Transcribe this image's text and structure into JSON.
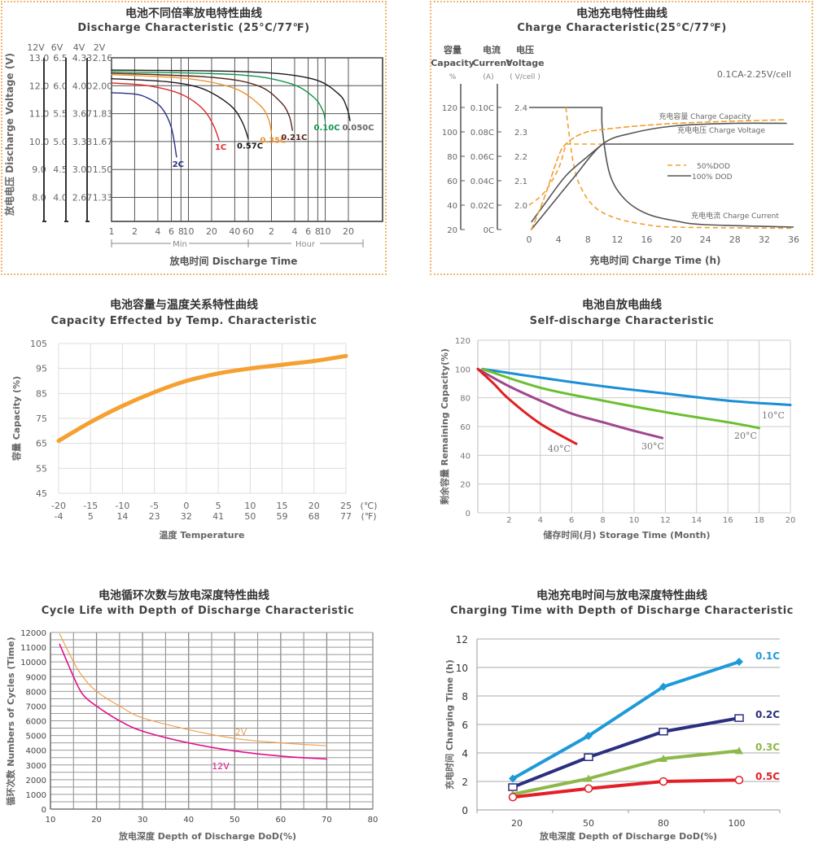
{
  "chart_data": [
    {
      "type": "line",
      "title": "电池不同倍率放电特性曲线",
      "subtitle": "Discharge Characteristic (25°C/77℉)",
      "ylabel": "放电电压  Discharge Voltage (V)",
      "xlabel": "放电时间   Discharge Time",
      "x_scale": "log",
      "y_values_12V": [
        13,
        12,
        11,
        10,
        9,
        8
      ],
      "y_scales": [
        {
          "header": "12V",
          "ticks": [
            "13.0",
            "12.0",
            "11.0",
            "10.0",
            "9.0",
            "8.0"
          ]
        },
        {
          "header": "6V",
          "ticks": [
            "6.5",
            "6.0",
            "5.5",
            "5.0",
            "4.5",
            "4.0"
          ]
        },
        {
          "header": "4V",
          "ticks": [
            "4.33",
            "4.00",
            "3.67",
            "3.33",
            "3.00",
            "2.67"
          ]
        },
        {
          "header": "2V",
          "ticks": [
            "2.16",
            "2.00",
            "1.83",
            "1.67",
            "1.50",
            "1.33"
          ]
        }
      ],
      "x_ticks": [
        {
          "label": "1",
          "minutes": 1
        },
        {
          "label": "2",
          "minutes": 2
        },
        {
          "label": "4",
          "minutes": 4
        },
        {
          "label": "6",
          "minutes": 6
        },
        {
          "label": "8",
          "minutes": 8
        },
        {
          "label": "10",
          "minutes": 10
        },
        {
          "label": "20",
          "minutes": 20
        },
        {
          "label": "40",
          "minutes": 40
        },
        {
          "label": "60",
          "minutes": 60
        },
        {
          "label": "2",
          "minutes": 120
        },
        {
          "label": "4",
          "minutes": 240
        },
        {
          "label": "6",
          "minutes": 360
        },
        {
          "label": "8",
          "minutes": 480
        },
        {
          "label": "10",
          "minutes": 600
        },
        {
          "label": "20",
          "minutes": 1200
        }
      ],
      "x_unit_groups": [
        "Min",
        "Hour"
      ],
      "series": [
        {
          "name": "2C",
          "color": "#2a2f86",
          "points": [
            [
              1,
              11.75
            ],
            [
              2,
              11.7
            ],
            [
              3,
              11.55
            ],
            [
              4.5,
              11.2
            ],
            [
              6,
              10.5
            ],
            [
              7,
              9.45
            ]
          ]
        },
        {
          "name": "1C",
          "color": "#e0262b",
          "points": [
            [
              1,
              12.1
            ],
            [
              3,
              12.0
            ],
            [
              8,
              11.7
            ],
            [
              15,
              11.2
            ],
            [
              21,
              10.6
            ],
            [
              25,
              10.05
            ]
          ]
        },
        {
          "name": "0.57C",
          "color": "#1a1a1a",
          "points": [
            [
              1,
              12.25
            ],
            [
              5,
              12.15
            ],
            [
              15,
              11.9
            ],
            [
              35,
              11.3
            ],
            [
              50,
              10.7
            ],
            [
              60,
              10.1
            ]
          ]
        },
        {
          "name": "0.35C",
          "color": "#f0922e",
          "points": [
            [
              1,
              12.4
            ],
            [
              10,
              12.25
            ],
            [
              40,
              11.9
            ],
            [
              85,
              11.3
            ],
            [
              110,
              10.8
            ],
            [
              120,
              10.3
            ]
          ]
        },
        {
          "name": "0.21C",
          "color": "#5a2a22",
          "points": [
            [
              1,
              12.45
            ],
            [
              20,
              12.3
            ],
            [
              80,
              12.0
            ],
            [
              160,
              11.4
            ],
            [
              205,
              10.9
            ],
            [
              225,
              10.4
            ]
          ]
        },
        {
          "name": "0.10C",
          "color": "#10944a",
          "points": [
            [
              1,
              12.5
            ],
            [
              40,
              12.4
            ],
            [
              200,
              12.1
            ],
            [
              420,
              11.6
            ],
            [
              560,
              11.1
            ],
            [
              600,
              10.75
            ]
          ]
        },
        {
          "name": "0.050C",
          "color": "#1a1a1a",
          "label_color": "#666666",
          "points": [
            [
              1,
              12.56
            ],
            [
              60,
              12.5
            ],
            [
              400,
              12.25
            ],
            [
              900,
              11.7
            ],
            [
              1150,
              11.2
            ],
            [
              1260,
              10.75
            ]
          ]
        }
      ]
    },
    {
      "type": "line",
      "title": "电池充电特性曲线",
      "subtitle": "Charge Characteristic(25°C/77℉)",
      "axis_headers": [
        {
          "cn": "容量",
          "en": "Capacity",
          "unit": "%"
        },
        {
          "cn": "电流",
          "en": "Current",
          "unit": "(A)"
        },
        {
          "cn": "电压",
          "en": "Voltage",
          "unit": "( V/cell )"
        }
      ],
      "note": "0.1CA-2.25V/cell",
      "capacity_ticks": [
        120,
        100,
        80,
        60,
        40,
        20
      ],
      "current_ticks": [
        "0.10C",
        "0.08C",
        "0.06C",
        "0.04C",
        "0.02C",
        "0C"
      ],
      "voltage_ticks": [
        "2.4",
        "2.3",
        "2.2",
        "2.1",
        "2.0"
      ],
      "x_ticks": [
        0,
        4,
        8,
        12,
        16,
        20,
        24,
        28,
        32,
        36
      ],
      "xlim": [
        0,
        36
      ],
      "xlabel": "充电时间 Charge Time (h)",
      "legend": [
        {
          "label": "50%DOD",
          "style": "dashed",
          "color": "#f0a030"
        },
        {
          "label": "100% DOD",
          "style": "solid",
          "color": "#555555"
        }
      ],
      "curve_labels": {
        "capacity": "充电容量 Charge Capacity",
        "voltage": "充电电压 Charge Voltage",
        "current": "充电电流 Charge Current"
      },
      "series": [
        {
          "quantity": "current",
          "dod": "100% DOD",
          "points": [
            [
              0,
              0.1
            ],
            [
              9.9,
              0.1
            ],
            [
              10,
              0.08
            ],
            [
              11,
              0.045
            ],
            [
              13,
              0.025
            ],
            [
              16,
              0.013
            ],
            [
              20,
              0.007
            ],
            [
              24,
              0.004
            ],
            [
              36,
              0.002
            ]
          ]
        },
        {
          "quantity": "current",
          "dod": "50%DOD",
          "points": [
            [
              5,
              0.1
            ],
            [
              5.2,
              0.09
            ],
            [
              6,
              0.055
            ],
            [
              7,
              0.035
            ],
            [
              9,
              0.018
            ],
            [
              12,
              0.009
            ],
            [
              16,
              0.004
            ],
            [
              20,
              0.002
            ],
            [
              36,
              0.001
            ]
          ]
        },
        {
          "quantity": "voltage",
          "dod": "100% DOD",
          "points": [
            [
              0.3,
              1.93
            ],
            [
              2,
              2.0
            ],
            [
              5,
              2.12
            ],
            [
              8,
              2.2
            ],
            [
              10,
              2.25
            ],
            [
              36,
              2.25
            ]
          ]
        },
        {
          "quantity": "voltage",
          "dod": "50%DOD",
          "points": [
            [
              0,
              2.0
            ],
            [
              2,
              2.05
            ],
            [
              4,
              2.15
            ],
            [
              5,
              2.25
            ],
            [
              10,
              2.25
            ]
          ]
        },
        {
          "quantity": "capacity",
          "dod": "100% DOD",
          "points": [
            [
              0.3,
              20
            ],
            [
              3,
              40
            ],
            [
              6,
              62
            ],
            [
              10,
              90
            ],
            [
              14,
              99
            ],
            [
              20,
              105
            ],
            [
              28,
              107
            ],
            [
              35,
              107
            ]
          ]
        },
        {
          "quantity": "capacity",
          "dod": "50%DOD",
          "points": [
            [
              0.3,
              20
            ],
            [
              2,
              45
            ],
            [
              4,
              80
            ],
            [
              5,
              90
            ],
            [
              7,
              98
            ],
            [
              10,
              102
            ],
            [
              20,
              107
            ],
            [
              35,
              110
            ]
          ]
        }
      ]
    },
    {
      "type": "line",
      "title": "电池容量与温度关系特性曲线",
      "subtitle": "Capacity Effected by Temp. Characteristic",
      "ylabel": "容量   Capacity (%)",
      "xlabel": "温度 Temperature",
      "y_ticks": [
        105,
        95,
        85,
        75,
        65,
        55,
        45
      ],
      "ylim": [
        45,
        105
      ],
      "x_ticks_c": [
        -20,
        -15,
        -10,
        -5,
        0,
        5,
        10,
        15,
        20,
        25
      ],
      "x_ticks_f": [
        -4,
        5,
        14,
        23,
        32,
        41,
        50,
        59,
        68,
        77
      ],
      "unit_c": "(℃)",
      "unit_f": "(℉)",
      "grid": true,
      "color": "#f5a030",
      "x": [
        -20,
        -15,
        -10,
        -5,
        0,
        5,
        10,
        15,
        20,
        25
      ],
      "values": [
        66,
        73.5,
        80,
        85.5,
        90,
        93,
        95,
        96.5,
        98,
        100
      ]
    },
    {
      "type": "line",
      "title": "电池自放电曲线",
      "subtitle": "Self-discharge Characteristic",
      "ylabel": "剩余容量 Remaining Capacity(%)",
      "xlabel": "储存时间(月) Storage Time  (Month)",
      "y_ticks": [
        0,
        20,
        40,
        60,
        80,
        100,
        120
      ],
      "x_ticks": [
        2,
        4,
        6,
        8,
        10,
        12,
        14,
        16,
        18,
        20
      ],
      "xlim": [
        0,
        20
      ],
      "ylim": [
        0,
        120
      ],
      "grid": true,
      "series": [
        {
          "name": "10°C",
          "color": "#1a8fd6",
          "points": [
            [
              0.3,
              100
            ],
            [
              4,
              94
            ],
            [
              8,
              88
            ],
            [
              12,
              83
            ],
            [
              16,
              78
            ],
            [
              20,
              75
            ]
          ]
        },
        {
          "name": "20°C",
          "color": "#6abf2e",
          "points": [
            [
              0.3,
              100
            ],
            [
              4,
              87
            ],
            [
              8,
              78
            ],
            [
              12,
              70
            ],
            [
              16,
              63
            ],
            [
              18,
              59
            ]
          ]
        },
        {
          "name": "30°C",
          "color": "#a0478f",
          "points": [
            [
              0,
              100
            ],
            [
              2,
              88
            ],
            [
              4,
              78
            ],
            [
              6,
              69
            ],
            [
              8,
              63
            ],
            [
              10,
              57
            ],
            [
              11.8,
              52
            ]
          ]
        },
        {
          "name": "40°C",
          "color": "#e02020",
          "points": [
            [
              0,
              100
            ],
            [
              1,
              90
            ],
            [
              2,
              79
            ],
            [
              4,
              62
            ],
            [
              6.3,
              48
            ]
          ]
        }
      ]
    },
    {
      "type": "line",
      "title": "电池循环次数与放电深度特性曲线",
      "subtitle": "Cycle Life with Depth of Discharge Characteristic",
      "ylabel": "循环次数 Numbers of Cycles (Time)",
      "xlabel": "放电深度 Depth of Discharge DoD(%)",
      "y_ticks": [
        0,
        1000,
        2000,
        3000,
        4000,
        5000,
        6000,
        7000,
        8000,
        9000,
        10000,
        11000,
        12000
      ],
      "x_ticks": [
        10,
        20,
        30,
        40,
        50,
        60,
        70,
        80
      ],
      "xlim": [
        10,
        80
      ],
      "ylim": [
        0,
        12000
      ],
      "grid": true,
      "series": [
        {
          "name": "2V",
          "color": "#f0a050",
          "points": [
            [
              12,
              11900
            ],
            [
              15,
              10000
            ],
            [
              17,
              9000
            ],
            [
              20,
              8000
            ],
            [
              25,
              7000
            ],
            [
              30,
              6200
            ],
            [
              40,
              5400
            ],
            [
              50,
              4800
            ],
            [
              60,
              4500
            ],
            [
              70,
              4300
            ]
          ]
        },
        {
          "name": "12V",
          "color": "#e0108a",
          "points": [
            [
              12,
              11200
            ],
            [
              15,
              9000
            ],
            [
              17,
              7800
            ],
            [
              20,
              7000
            ],
            [
              25,
              6000
            ],
            [
              30,
              5300
            ],
            [
              40,
              4500
            ],
            [
              50,
              3950
            ],
            [
              60,
              3600
            ],
            [
              70,
              3400
            ]
          ]
        }
      ]
    },
    {
      "type": "line",
      "title": "电池充电时间与放电深度特性曲线",
      "subtitle": "Charging Time with Depth of Discharge Characteristic",
      "ylabel": "充电时间 Charging Time (h)",
      "xlabel": "放电深度 Depth of Discharge DoD(%)",
      "categories": [
        "20",
        "50",
        "80",
        "100"
      ],
      "y_ticks": [
        0,
        2,
        4,
        6,
        8,
        10,
        12
      ],
      "ylim": [
        0,
        12
      ],
      "series": [
        {
          "name": "0.1C",
          "color": "#1e9ad8",
          "marker": "diamond",
          "values": [
            2.2,
            5.2,
            8.65,
            10.4
          ]
        },
        {
          "name": "0.2C",
          "color": "#2b2f80",
          "marker": "square",
          "values": [
            1.6,
            3.7,
            5.5,
            6.45
          ]
        },
        {
          "name": "0.3C",
          "color": "#8db84a",
          "marker": "triangle",
          "values": [
            1.1,
            2.2,
            3.6,
            4.15
          ]
        },
        {
          "name": "0.5C",
          "color": "#e3202a",
          "marker": "circle",
          "values": [
            0.9,
            1.5,
            2.0,
            2.1
          ]
        }
      ]
    }
  ]
}
